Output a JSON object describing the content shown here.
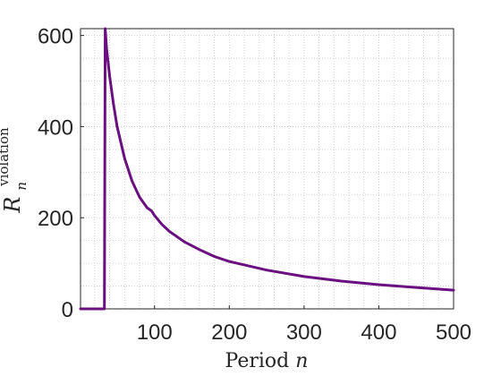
{
  "chart_data": {
    "type": "line",
    "title": "",
    "xlabel": "Period",
    "xlabel_var": "n",
    "ylabel_base": "R",
    "ylabel_sub": "n",
    "ylabel_sup": "violation",
    "xlim": [
      1,
      500
    ],
    "ylim": [
      0,
      615
    ],
    "xticks": [
      100,
      200,
      300,
      400,
      500
    ],
    "yticks": [
      0,
      200,
      400,
      600
    ],
    "grid": "minor dotted",
    "color": "#6a0f7f",
    "series": [
      {
        "x": [
          1,
          33,
          34,
          36,
          40,
          45,
          50,
          60,
          70,
          80,
          90,
          96,
          100,
          110,
          120,
          140,
          160,
          180,
          200,
          250,
          300,
          350,
          400,
          450,
          500
        ],
        "y": [
          0,
          0,
          615,
          570,
          510,
          450,
          400,
          330,
          280,
          245,
          222,
          215,
          205,
          185,
          170,
          147,
          130,
          115,
          104,
          85,
          71,
          61,
          53,
          47,
          41
        ]
      }
    ]
  }
}
